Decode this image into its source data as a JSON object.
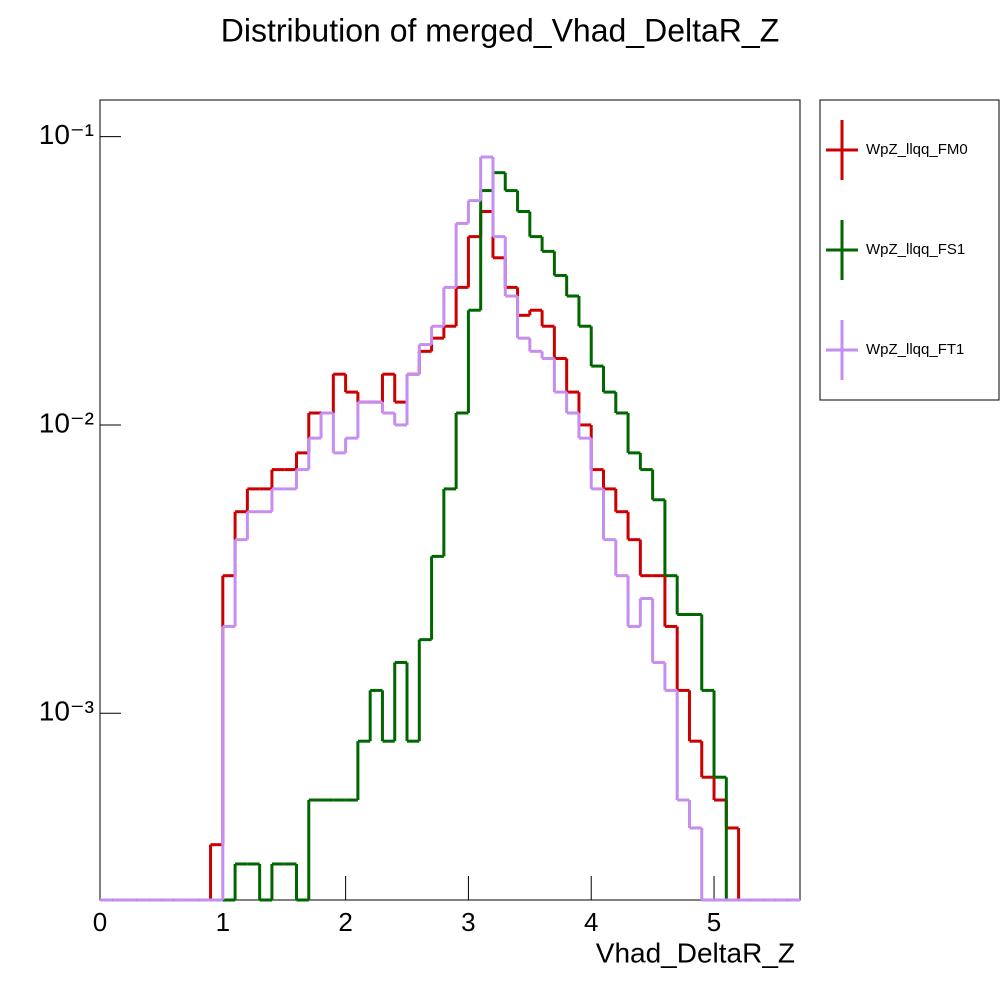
{
  "chart_data": {
    "type": "histogram",
    "title": "Distribution of merged_Vhad_DeltaR_Z",
    "x_label": "Vhad_DeltaR_Z",
    "log_y": true,
    "bins": [
      0,
      0.1,
      0.2,
      0.3,
      0.4,
      0.5,
      0.6,
      0.7,
      0.8,
      0.9,
      1.0,
      1.1,
      1.2,
      1.3,
      1.4,
      1.5,
      1.6,
      1.7,
      1.8,
      1.9,
      2.0,
      2.1,
      2.2,
      2.3,
      2.4,
      2.5,
      2.6,
      2.7,
      2.8,
      2.9,
      3.0,
      3.1,
      3.2,
      3.3,
      3.4,
      3.5,
      3.6,
      3.7,
      3.8,
      3.9,
      4.0,
      4.1,
      4.2,
      4.3,
      4.4,
      4.5,
      4.6,
      4.7,
      4.8,
      4.9,
      5.0,
      5.1,
      5.2,
      5.3,
      5.4,
      5.5,
      5.6,
      5.7
    ],
    "xlim": [
      0,
      5.7
    ],
    "xticks": [
      0,
      1,
      2,
      3,
      4,
      5
    ],
    "ylim": [
      0.000225,
      0.134
    ],
    "yticks": [
      {
        "value": 0.1,
        "label": "10⁻¹"
      },
      {
        "value": 0.01,
        "label": "10⁻²"
      },
      {
        "value": 0.001,
        "label": "10⁻³"
      }
    ],
    "series": [
      {
        "name": "WpZ_llqq_FM0",
        "color": "#cc0000",
        "values": [
          0,
          0,
          0,
          0,
          0,
          0,
          0,
          0,
          0,
          0.00035,
          0.003,
          0.005,
          0.006,
          0.006,
          0.007,
          0.007,
          0.008,
          0.011,
          0.011,
          0.015,
          0.013,
          0.012,
          0.012,
          0.015,
          0.012,
          0.015,
          0.018,
          0.02,
          0.022,
          0.03,
          0.045,
          0.055,
          0.038,
          0.03,
          0.024,
          0.025,
          0.022,
          0.017,
          0.013,
          0.01,
          0.007,
          0.006,
          0.005,
          0.004,
          0.003,
          0.003,
          0.002,
          0.0012,
          0.0008,
          0.0006,
          0.0005,
          0.0004,
          0,
          0,
          0,
          0,
          0
        ]
      },
      {
        "name": "WpZ_llqq_FS1",
        "color": "#006600",
        "values": [
          0,
          0,
          0,
          0,
          0,
          0,
          0,
          0,
          0,
          0,
          0,
          0.0003,
          0.0003,
          0,
          0.0003,
          0.0003,
          0,
          0.0005,
          0.0005,
          0.0005,
          0.0005,
          0.0008,
          0.0012,
          0.0008,
          0.0015,
          0.0008,
          0.0018,
          0.0035,
          0.006,
          0.011,
          0.025,
          0.065,
          0.075,
          0.065,
          0.055,
          0.045,
          0.04,
          0.033,
          0.028,
          0.022,
          0.016,
          0.013,
          0.011,
          0.008,
          0.007,
          0.0055,
          0.003,
          0.0022,
          0.0022,
          0.0012,
          0.0006,
          0,
          0,
          0,
          0,
          0,
          0
        ]
      },
      {
        "name": "WpZ_llqq_FT1",
        "color": "#c58ef0",
        "values": [
          0,
          0,
          0,
          0,
          0,
          0,
          0,
          0,
          0,
          0,
          0.002,
          0.004,
          0.005,
          0.005,
          0.006,
          0.006,
          0.007,
          0.009,
          0.011,
          0.008,
          0.009,
          0.012,
          0.012,
          0.011,
          0.01,
          0.015,
          0.019,
          0.022,
          0.03,
          0.05,
          0.06,
          0.085,
          0.045,
          0.028,
          0.02,
          0.018,
          0.017,
          0.013,
          0.011,
          0.009,
          0.006,
          0.004,
          0.003,
          0.002,
          0.0025,
          0.0015,
          0.0012,
          0.0005,
          0.0004,
          0,
          0,
          0,
          0,
          0,
          0,
          0,
          0
        ]
      }
    ]
  }
}
